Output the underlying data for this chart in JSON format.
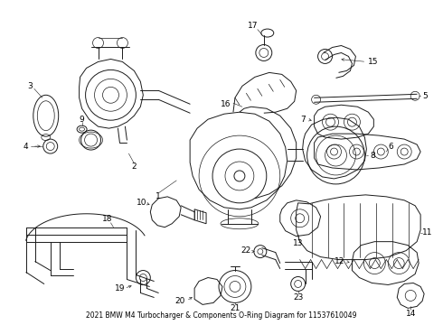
{
  "title": "2021 BMW M4 Turbocharger & Components O-Ring Diagram for 11537610049",
  "background_color": "#ffffff",
  "line_color": "#1a1a1a",
  "text_color": "#000000",
  "fig_width": 4.9,
  "fig_height": 3.6,
  "dpi": 100
}
